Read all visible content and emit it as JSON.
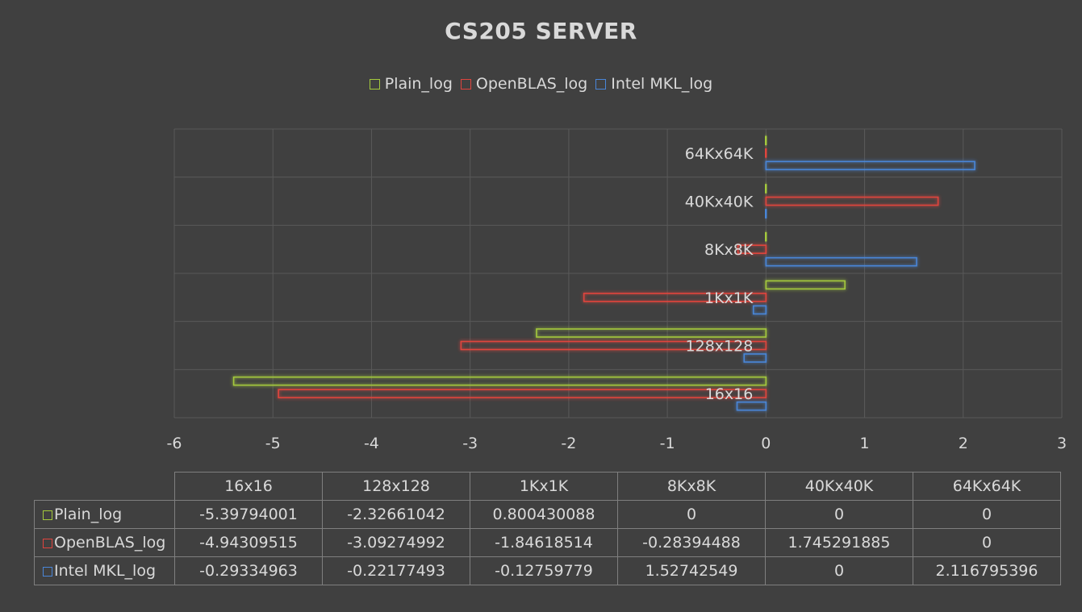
{
  "chart_data": {
    "type": "bar",
    "orientation": "horizontal",
    "title": "CS205 SERVER",
    "categories": [
      "16x16",
      "128x128",
      "1Kx1K",
      "8Kx8K",
      "40Kx40K",
      "64Kx64K"
    ],
    "series": [
      {
        "name": "Plain_log",
        "color": "#a4c93c",
        "values": [
          -5.39794001,
          -2.32661042,
          0.800430088,
          0,
          0,
          0
        ],
        "labels": [
          "-5.39794001",
          "-2.32661042",
          "0.800430088",
          "0",
          "0",
          "0"
        ]
      },
      {
        "name": "OpenBLAS_log",
        "color": "#e0443e",
        "values": [
          -4.94309515,
          -3.09274992,
          -1.84618514,
          -0.28394488,
          1.745291885,
          0
        ],
        "labels": [
          "-4.94309515",
          "-3.09274992",
          "-1.84618514",
          "-0.28394488",
          "1.745291885",
          "0"
        ]
      },
      {
        "name": "Intel MKL_log",
        "color": "#4a86d8",
        "values": [
          -0.29334963,
          -0.22177493,
          -0.12759779,
          1.52742549,
          0,
          2.116795396
        ],
        "labels": [
          "-0.29334963",
          "-0.22177493",
          "-0.12759779",
          "1.52742549",
          "0",
          "2.116795396"
        ]
      }
    ],
    "xlim": [
      -6,
      3
    ],
    "xticks": [
      "-6",
      "-5",
      "-4",
      "-3",
      "-2",
      "-1",
      "0",
      "1",
      "2",
      "3"
    ],
    "grid": true,
    "legend": "top",
    "data_table": true
  }
}
